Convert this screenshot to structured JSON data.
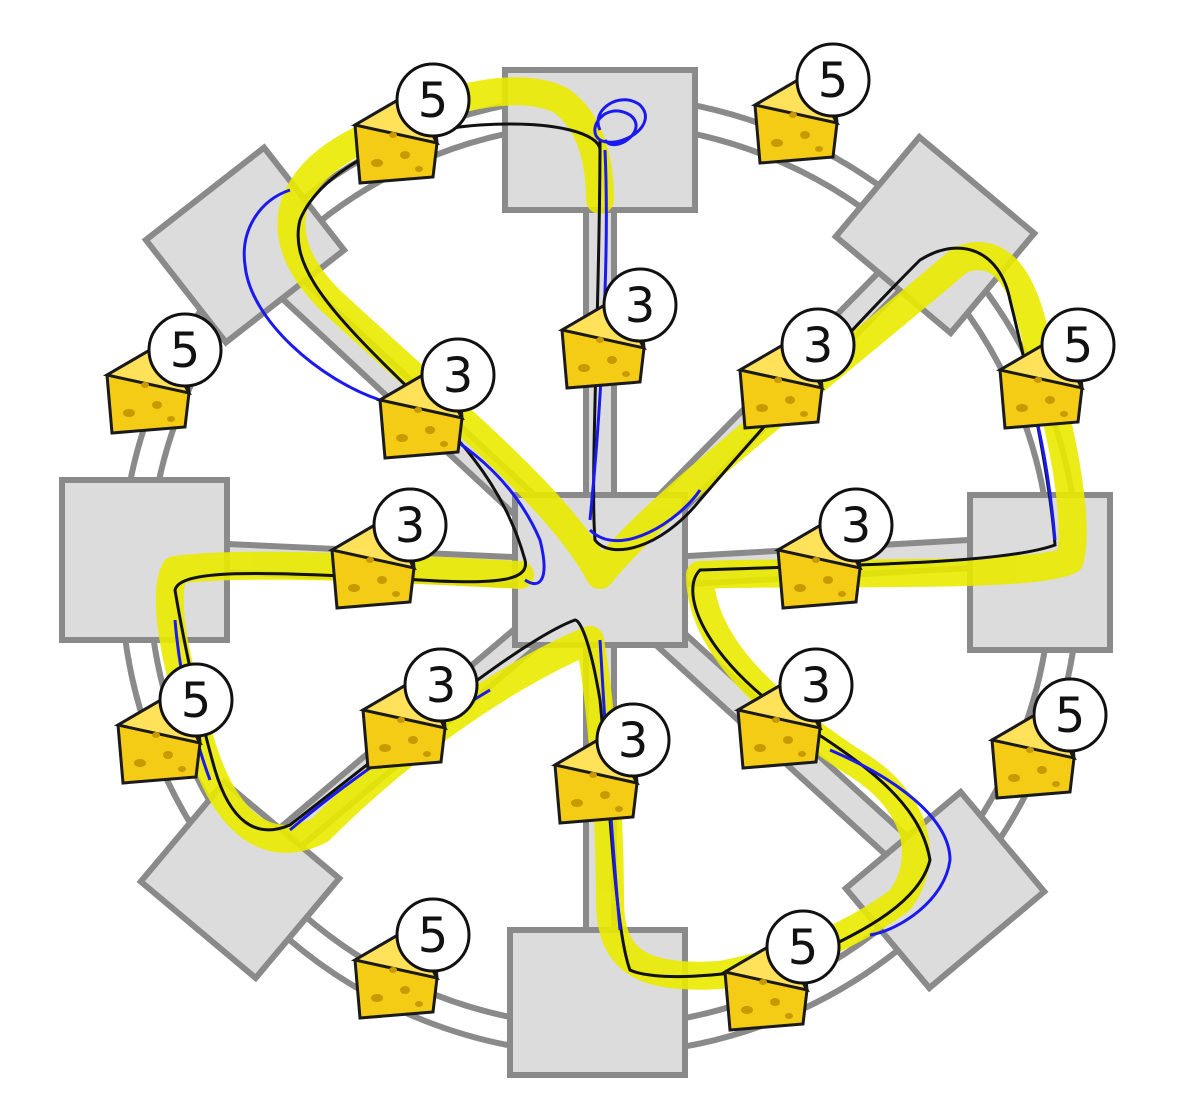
{
  "colors": {
    "room_fill": "#dcdcdc",
    "room_stroke": "#8a8a8a",
    "highlight": "#eaea00",
    "path_black": "#111111",
    "path_blue": "#1a1aee",
    "cheese": "#f5cc15",
    "cheese_edge": "#1a1a1a"
  },
  "cheeses": [
    {
      "id": "c1",
      "value": "5"
    },
    {
      "id": "c2",
      "value": "5"
    },
    {
      "id": "c3",
      "value": "5"
    },
    {
      "id": "c4",
      "value": "5"
    },
    {
      "id": "c5",
      "value": "5"
    },
    {
      "id": "c6",
      "value": "5"
    },
    {
      "id": "c7",
      "value": "5"
    },
    {
      "id": "c8",
      "value": "5"
    },
    {
      "id": "c9",
      "value": "3"
    },
    {
      "id": "c10",
      "value": "3"
    },
    {
      "id": "c11",
      "value": "3"
    },
    {
      "id": "c12",
      "value": "3"
    },
    {
      "id": "c13",
      "value": "3"
    },
    {
      "id": "c14",
      "value": "3"
    },
    {
      "id": "c15",
      "value": "3"
    },
    {
      "id": "c16",
      "value": "3"
    }
  ]
}
